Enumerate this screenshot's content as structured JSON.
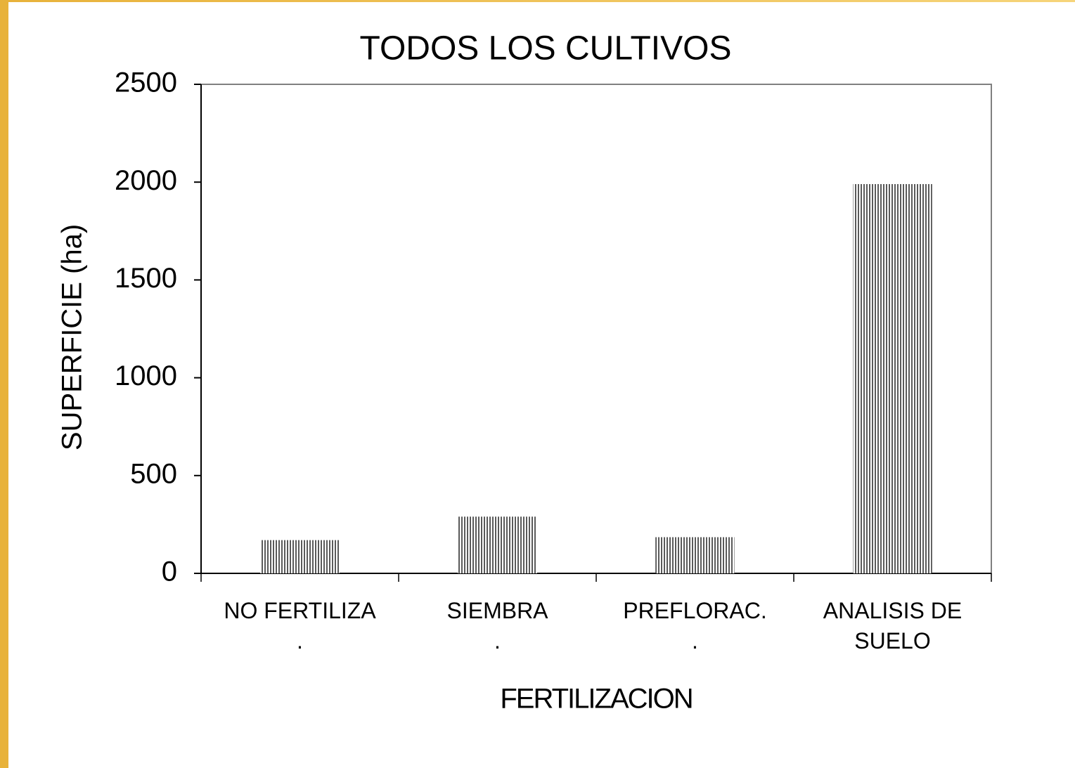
{
  "chart_data": {
    "type": "bar",
    "title": "TODOS LOS CULTIVOS",
    "x_label": "FERTILIZACION",
    "y_label": "SUPERFICIE (ha)",
    "categories": [
      "NO FERTILIZA\n.",
      "SIEMBRA\n.",
      "PREFLORAC.\n.",
      "ANALISIS DE\nSUELO"
    ],
    "values": [
      170,
      290,
      185,
      1990
    ],
    "color": "#000000",
    "ylim": [
      0,
      2500
    ],
    "yticks": [
      0,
      500,
      1000,
      1500,
      2000,
      2500
    ],
    "grid": false
  }
}
